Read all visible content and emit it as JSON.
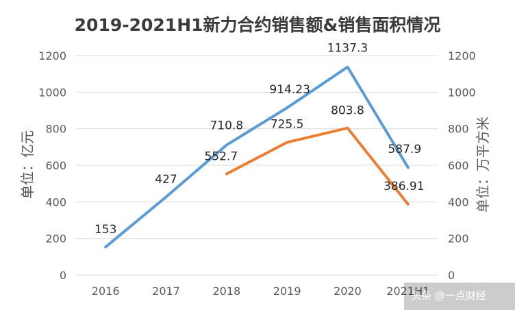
{
  "chart_data": {
    "type": "line",
    "title": "2019-2021H1新力合约销售额&销售面积情况",
    "categories": [
      "2016",
      "2017",
      "2018",
      "2019",
      "2020",
      "2021H1"
    ],
    "ylabel": "单位：亿元",
    "y2label": "单位：万平方米",
    "ylim": [
      0,
      1200
    ],
    "y2lim": [
      0,
      1200
    ],
    "yticks": [
      "0",
      "200",
      "400",
      "600",
      "800",
      "1000",
      "1200"
    ],
    "y2ticks": [
      "0",
      "200",
      "400",
      "600",
      "800",
      "1000",
      "1200"
    ],
    "grid": true,
    "series": [
      {
        "axis": "left",
        "color": "#5b9bd5",
        "values": [
          153,
          427,
          710.8,
          914.23,
          1137.3,
          587.9
        ],
        "labels": [
          "153",
          "427",
          "710.8",
          "914.23",
          "1137.3",
          "587.9"
        ]
      },
      {
        "axis": "right",
        "color": "#ed7d31",
        "values": [
          null,
          null,
          552.7,
          725.5,
          803.8,
          386.91
        ],
        "labels": [
          "",
          "",
          "552.7",
          "725.5",
          "803.8",
          "386.91"
        ]
      }
    ]
  },
  "watermark": "头条 @一点财经"
}
